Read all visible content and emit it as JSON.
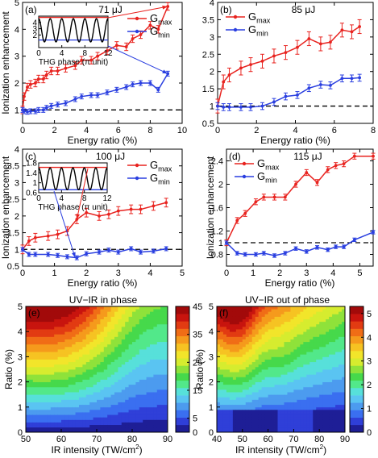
{
  "colors": {
    "max": "#e8231f",
    "min": "#2a3fe0",
    "axis": "#000000",
    "dash": "#000000",
    "inset_curve": "#000000"
  },
  "chart_data": [
    {
      "panel_label": "(a)",
      "title": "71 μJ",
      "type": "line",
      "xlabel": "Energy ratio (%)",
      "ylabel": "Ionization enhancement",
      "xlim": [
        0,
        10
      ],
      "ylim": [
        0.5,
        5
      ],
      "xticks": [
        0,
        2,
        4,
        6,
        8,
        10
      ],
      "yticks": [
        1,
        2,
        3,
        4,
        5
      ],
      "reference_y": 1,
      "legend": {
        "position": "top-right",
        "labels": [
          "G",
          "G"
        ],
        "subscripts": [
          "max",
          "min"
        ]
      },
      "series": [
        {
          "name": "Gmax",
          "key": "max",
          "x": [
            0,
            0.1,
            0.3,
            0.5,
            0.8,
            1.0,
            1.3,
            1.5,
            1.8,
            2.2,
            2.7,
            3.3,
            3.7,
            4.3,
            4.7,
            5.3,
            5.9,
            6.5,
            6.9,
            7.4,
            8.0,
            8.5,
            9.1
          ],
          "y": [
            1.0,
            1.5,
            1.85,
            1.95,
            2.0,
            2.15,
            2.15,
            2.3,
            2.45,
            2.45,
            2.55,
            2.65,
            2.85,
            2.85,
            3.0,
            3.2,
            3.4,
            3.35,
            3.65,
            3.8,
            4.15,
            4.0,
            4.85
          ],
          "err": 0.14
        },
        {
          "name": "Gmin",
          "key": "min",
          "x": [
            0,
            0.1,
            0.3,
            0.5,
            0.8,
            1.0,
            1.3,
            1.5,
            1.8,
            2.2,
            2.7,
            3.3,
            3.7,
            4.3,
            4.7,
            5.3,
            5.9,
            6.5,
            6.9,
            7.4,
            8.0,
            8.5,
            9.1
          ],
          "y": [
            1.0,
            0.95,
            0.93,
            0.95,
            0.95,
            1.0,
            1.0,
            1.08,
            1.15,
            1.2,
            1.25,
            1.4,
            1.5,
            1.55,
            1.55,
            1.65,
            1.75,
            1.85,
            1.95,
            2.0,
            2.0,
            1.75,
            2.35
          ],
          "err": 0.09
        }
      ],
      "inset": {
        "xlabel": "THG phase (π unit)",
        "xlim": [
          0,
          12
        ],
        "ylim": [
          0,
          5
        ],
        "xticks": [
          0,
          4,
          8,
          12
        ],
        "yticks": [
          2,
          3,
          4
        ],
        "max_level": 4.8,
        "min_level": 1.2,
        "amplitude_min": 0.9,
        "amplitude_max": 4.6,
        "period": 2
      }
    },
    {
      "panel_label": "(b)",
      "title": "85 μJ",
      "type": "line",
      "xlabel": "Energy ratio (%)",
      "ylabel": "",
      "xlim": [
        0,
        8
      ],
      "ylim": [
        0.5,
        4
      ],
      "xticks": [
        0,
        2,
        4,
        6,
        8
      ],
      "yticks": [
        0.5,
        1,
        1.5,
        2,
        2.5,
        3,
        3.5,
        4
      ],
      "reference_y": 1,
      "legend": {
        "position": "top-left",
        "labels": [
          "G",
          "G"
        ],
        "subscripts": [
          "max",
          "min"
        ]
      },
      "series": [
        {
          "name": "Gmax",
          "key": "max",
          "x": [
            0,
            0.3,
            0.6,
            1.2,
            1.7,
            2.3,
            2.9,
            3.5,
            4.1,
            4.7,
            5.3,
            5.8,
            6.4,
            6.9,
            7.3
          ],
          "y": [
            1.0,
            1.7,
            1.9,
            2.1,
            2.2,
            2.3,
            2.45,
            2.55,
            2.7,
            2.95,
            2.8,
            2.85,
            3.2,
            3.15,
            3.3
          ],
          "err": 0.2
        },
        {
          "name": "Gmin",
          "key": "min",
          "x": [
            0,
            0.3,
            0.6,
            1.2,
            1.7,
            2.3,
            2.9,
            3.5,
            4.1,
            4.7,
            5.3,
            5.8,
            6.4,
            6.9,
            7.3
          ],
          "y": [
            1.0,
            0.97,
            0.97,
            0.97,
            0.97,
            1.0,
            1.12,
            1.28,
            1.32,
            1.52,
            1.62,
            1.6,
            1.8,
            1.8,
            1.82
          ],
          "err": 0.1
        }
      ]
    },
    {
      "panel_label": "(c)",
      "title": "100 μJ",
      "type": "line",
      "xlabel": "Energy ratio (%)",
      "ylabel": "Ionization enhancement",
      "xlim": [
        0,
        5
      ],
      "ylim": [
        0.5,
        4
      ],
      "xticks": [
        0,
        1,
        2,
        3,
        4,
        5
      ],
      "yticks": [
        0.5,
        1,
        1.5,
        2,
        2.5,
        3,
        3.5,
        4
      ],
      "reference_y": 1,
      "legend": {
        "position": "top-right",
        "labels": [
          "G",
          "G"
        ],
        "subscripts": [
          "max",
          "min"
        ]
      },
      "series": [
        {
          "name": "Gmax",
          "key": "max",
          "x": [
            0,
            0.2,
            0.4,
            0.8,
            1.1,
            1.4,
            1.7,
            2.0,
            2.4,
            2.7,
            3.0,
            3.4,
            3.7,
            4.1,
            4.5
          ],
          "y": [
            1.0,
            1.25,
            1.35,
            1.4,
            1.45,
            1.55,
            1.9,
            2.1,
            2.0,
            2.05,
            2.15,
            2.2,
            2.2,
            2.3,
            2.4
          ],
          "err": 0.13
        },
        {
          "name": "Gmin",
          "key": "min",
          "x": [
            0,
            0.2,
            0.4,
            0.8,
            1.1,
            1.4,
            1.7,
            2.0,
            2.4,
            2.7,
            3.0,
            3.4,
            3.7,
            4.1,
            4.5
          ],
          "y": [
            1.0,
            0.85,
            0.85,
            0.85,
            0.82,
            0.78,
            0.75,
            0.87,
            0.92,
            0.98,
            0.92,
            1.02,
            0.92,
            0.95,
            1.02
          ],
          "err": 0.06
        }
      ],
      "inset": {
        "xlabel": "THG phase (π unit)",
        "xlim": [
          0,
          12
        ],
        "ylim": [
          0.6,
          1.8
        ],
        "xticks": [
          0,
          4,
          8,
          12
        ],
        "yticks": [
          0.6,
          1.0,
          1.4,
          1.8
        ],
        "max_level": 1.62,
        "min_level": 0.72,
        "amplitude_min": 0.72,
        "amplitude_max": 1.6,
        "period": 2
      }
    },
    {
      "panel_label": "(d)",
      "title": "115 μJ",
      "type": "line",
      "xlabel": "Energy ratio (%)",
      "ylabel": "Ionization enhancement",
      "xlim": [
        0,
        5.5
      ],
      "ylim": [
        0.6,
        2.6
      ],
      "xticks": [
        0,
        1,
        2,
        3,
        4,
        5
      ],
      "yticks": [
        0.8,
        1,
        1.2,
        1.6,
        2,
        2.4
      ],
      "reference_y": 1,
      "legend": {
        "position": "top-left",
        "labels": [
          "G",
          "G"
        ],
        "subscripts": [
          "max",
          "min"
        ]
      },
      "series": [
        {
          "name": "Gmax",
          "key": "max",
          "x": [
            0,
            0.4,
            0.7,
            1.1,
            1.4,
            1.8,
            2.2,
            2.6,
            3.0,
            3.4,
            3.8,
            4.1,
            4.4,
            4.8,
            5.5
          ],
          "y": [
            1.0,
            1.38,
            1.5,
            1.7,
            1.78,
            1.78,
            1.78,
            2.0,
            2.2,
            2.03,
            2.25,
            2.32,
            2.35,
            2.48,
            2.48
          ],
          "err": 0.05
        },
        {
          "name": "Gmin",
          "key": "min",
          "x": [
            0,
            0.4,
            0.7,
            1.1,
            1.4,
            1.8,
            2.2,
            2.6,
            3.0,
            3.4,
            3.8,
            4.1,
            4.4,
            4.8,
            5.5
          ],
          "y": [
            1.0,
            0.82,
            0.8,
            0.8,
            0.82,
            0.78,
            0.82,
            0.9,
            0.85,
            0.92,
            0.88,
            0.93,
            0.93,
            1.05,
            1.18
          ],
          "err": 0.03
        }
      ]
    },
    {
      "panel_label": "(e)",
      "title": "UV−IR in phase",
      "type": "heatmap",
      "xlabel": "IR intensity (TW/cm",
      "xlabel_sup": "2",
      "xlabel_end": ")",
      "ylabel": "Ratio (%)",
      "xlim": [
        50,
        90
      ],
      "ylim": [
        0,
        5
      ],
      "xticks": [
        50,
        60,
        70,
        80,
        90
      ],
      "yticks": [
        0,
        1,
        2,
        3,
        4,
        5
      ],
      "colorbar": {
        "min": 0,
        "max": 45,
        "ticks": [
          0,
          5,
          15,
          25,
          35,
          45
        ]
      }
    },
    {
      "panel_label": "(f)",
      "title": "UV−IR out of phase",
      "type": "heatmap",
      "xlabel": "IR intensity (TW/cm",
      "xlabel_sup": "2",
      "xlabel_end": ")",
      "ylabel": "Ratio (%)",
      "xlim": [
        40,
        90
      ],
      "ylim": [
        0,
        5
      ],
      "xticks": [
        40,
        50,
        60,
        70,
        80,
        90
      ],
      "yticks": [
        0,
        1,
        2,
        3,
        4,
        5
      ],
      "colorbar": {
        "min": 0,
        "max": 5.3,
        "ticks": [
          0,
          1,
          2,
          3,
          4,
          5
        ]
      }
    }
  ]
}
